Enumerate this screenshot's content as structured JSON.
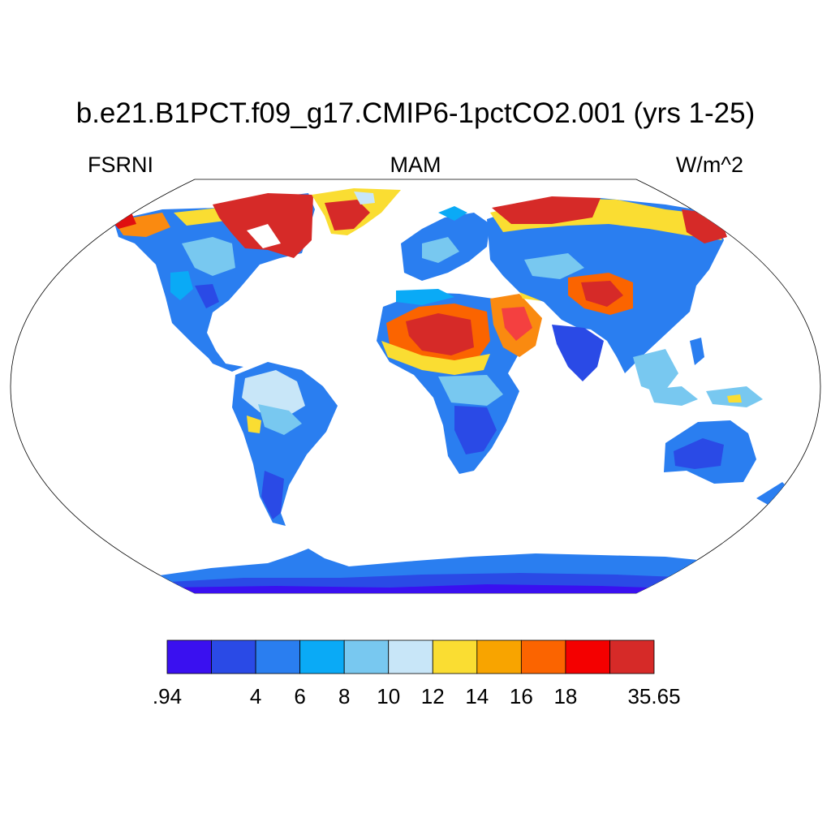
{
  "header": {
    "title": "b.e21.B1PCT.f09_g17.CMIP6-1pctCO2.001 (yrs 1-25)",
    "left_label": "FSRNI",
    "center_label": "MAM",
    "right_label": "W/m^2"
  },
  "map": {
    "projection": "Robinson",
    "ocean_color": "#ffffff",
    "coastline_color": "#000000"
  },
  "colorbar": {
    "colors": [
      "#3a10f0",
      "#2a4ae6",
      "#2a7ef0",
      "#0aaaf6",
      "#78c8f0",
      "#c8e6f8",
      "#fadd32",
      "#f8a400",
      "#fb6400",
      "#f40000",
      "#d62a28"
    ],
    "tick_labels": [
      ".94",
      "4",
      "6",
      "8",
      "10",
      "12",
      "14",
      "16",
      "18",
      "35.65"
    ],
    "boundaries": [
      0.94,
      2,
      4,
      6,
      8,
      10,
      12,
      14,
      16,
      18,
      20,
      35.65
    ]
  },
  "legend": {
    "placement": "bottom"
  }
}
